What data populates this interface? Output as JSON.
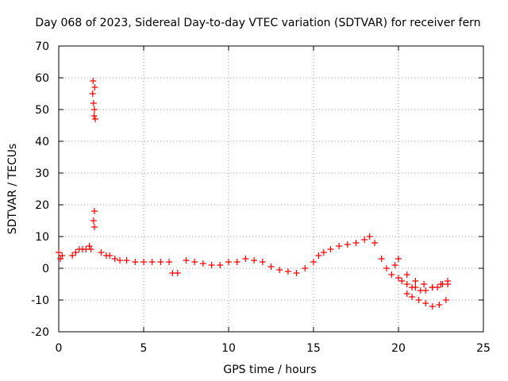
{
  "chart_data": {
    "type": "scatter",
    "title": "Day 068 of 2023, Sidereal Day-to-day VTEC variation (SDTVAR) for receiver fern",
    "xlabel": "GPS time / hours",
    "ylabel": "SDTVAR / TECUs",
    "xlim": [
      0,
      25
    ],
    "ylim": [
      -20,
      70
    ],
    "xticks": [
      "0",
      "5",
      "10",
      "15",
      "20",
      "25"
    ],
    "yticks": [
      "-20",
      "-10",
      "0",
      "10",
      "20",
      "30",
      "40",
      "50",
      "60",
      "70"
    ],
    "grid": true,
    "marker": "plus",
    "color": "#ff0000",
    "series": [
      {
        "name": "SDTVAR",
        "x": [
          0.0,
          0.1,
          0.2,
          0.8,
          1.0,
          1.2,
          1.4,
          1.6,
          1.8,
          1.9,
          2.0,
          2.02,
          2.05,
          2.08,
          2.1,
          2.12,
          2.15,
          2.1,
          2.05,
          2.1,
          2.5,
          2.8,
          3.0,
          3.3,
          3.6,
          4.0,
          4.5,
          5.0,
          5.5,
          6.0,
          6.5,
          6.7,
          7.0,
          7.5,
          8.0,
          8.5,
          9.0,
          9.5,
          10.0,
          10.5,
          11.0,
          11.5,
          12.0,
          12.5,
          13.0,
          13.5,
          14.0,
          14.5,
          15.0,
          15.3,
          15.6,
          16.0,
          16.5,
          17.0,
          17.5,
          18.0,
          18.3,
          18.6,
          19.0,
          19.3,
          19.6,
          20.0,
          20.2,
          20.5,
          20.8,
          21.0,
          21.3,
          21.6,
          22.0,
          22.3,
          22.6,
          22.9,
          19.8,
          20.0,
          20.5,
          21.0,
          21.5,
          22.0,
          22.5,
          22.9,
          20.5,
          20.8,
          21.2,
          21.6,
          22.0,
          22.4,
          22.8
        ],
        "y": [
          5,
          3,
          4,
          4,
          5,
          6,
          6,
          6,
          7,
          6,
          55,
          59,
          52,
          48,
          50,
          57,
          47,
          18,
          15,
          13,
          5,
          4,
          4,
          3,
          2.5,
          2.5,
          2,
          2,
          2,
          2,
          2,
          -1.5,
          -1.5,
          2.5,
          2,
          1.5,
          1,
          1,
          2,
          2,
          3,
          2.5,
          2,
          0.5,
          -0.5,
          -1,
          -1.5,
          0,
          2,
          4,
          5,
          6,
          7,
          7.5,
          8,
          9,
          10,
          8,
          3,
          0,
          -2,
          -3,
          -4,
          -5,
          -6,
          -6,
          -7,
          -7,
          -6,
          -6,
          -5,
          -5,
          1,
          3,
          -2,
          -4,
          -5,
          -6,
          -5,
          -4,
          -8,
          -9,
          -10,
          -11,
          -12,
          -11.5,
          -10
        ]
      }
    ]
  }
}
